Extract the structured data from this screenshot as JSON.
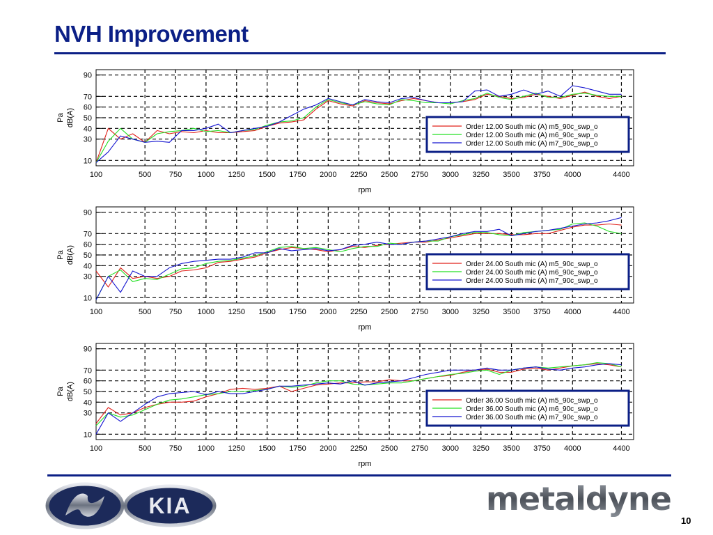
{
  "page": {
    "title": "NVH Improvement",
    "page_number": "10",
    "logos": {
      "left": "KIA",
      "right": "metaldyne"
    }
  },
  "colors": {
    "red": "#e0201a",
    "green": "#25e025",
    "blue": "#1414d0",
    "accent": "#0b1f86"
  },
  "chart_data": [
    {
      "type": "line",
      "xlabel": "rpm",
      "ylabel": [
        "Pa",
        "dB(A)"
      ],
      "xlim": [
        100,
        4500
      ],
      "ylim": [
        5,
        95
      ],
      "x_ticks": [
        100,
        500,
        750,
        1000,
        1250,
        1500,
        1750,
        2000,
        2250,
        2500,
        2750,
        3000,
        3250,
        3500,
        3750,
        4000,
        4400
      ],
      "y_ticks": [
        10,
        30,
        40,
        50,
        60,
        70,
        90
      ],
      "grid": true,
      "legend_position": "right",
      "x": [
        100,
        200,
        300,
        400,
        500,
        600,
        700,
        800,
        900,
        1000,
        1100,
        1200,
        1300,
        1400,
        1500,
        1600,
        1700,
        1800,
        1900,
        2000,
        2100,
        2200,
        2300,
        2400,
        2500,
        2600,
        2700,
        2800,
        2900,
        3000,
        3100,
        3200,
        3300,
        3400,
        3500,
        3600,
        3700,
        3800,
        3900,
        4000,
        4100,
        4200,
        4300,
        4400
      ],
      "series": [
        {
          "name": "Order 12.00 South mic (A)   m5_90c_swp_o",
          "color": "red",
          "values": [
            8,
            40,
            30,
            35,
            27,
            38,
            35,
            37,
            36,
            38,
            36,
            36,
            37,
            38,
            42,
            45,
            46,
            48,
            58,
            66,
            63,
            61,
            66,
            64,
            63,
            66,
            68,
            66,
            64,
            64,
            65,
            67,
            72,
            70,
            68,
            69,
            72,
            70,
            68,
            71,
            74,
            70,
            68,
            70
          ]
        },
        {
          "name": "Order 12.00 South mic (A)   m6_90c_swp_o",
          "color": "green",
          "values": [
            8,
            28,
            40,
            30,
            27,
            35,
            37,
            38,
            40,
            37,
            38,
            36,
            38,
            39,
            43,
            46,
            47,
            50,
            60,
            67,
            64,
            62,
            65,
            63,
            62,
            67,
            66,
            64,
            64,
            63,
            66,
            68,
            73,
            69,
            67,
            70,
            73,
            69,
            69,
            72,
            73,
            71,
            70,
            70
          ]
        },
        {
          "name": "Order 12.00 South mic (A)   m7_90c_swp_o",
          "color": "blue",
          "values": [
            8,
            18,
            33,
            30,
            27,
            28,
            27,
            38,
            38,
            40,
            44,
            36,
            38,
            40,
            42,
            46,
            52,
            58,
            62,
            68,
            65,
            62,
            67,
            65,
            64,
            68,
            69,
            66,
            64,
            64,
            65,
            75,
            76,
            70,
            72,
            76,
            72,
            75,
            70,
            80,
            78,
            75,
            72,
            72
          ]
        }
      ]
    },
    {
      "type": "line",
      "xlabel": "rpm",
      "ylabel": [
        "Pa",
        "dB(A)"
      ],
      "xlim": [
        100,
        4500
      ],
      "ylim": [
        5,
        95
      ],
      "x_ticks": [
        100,
        500,
        750,
        1000,
        1250,
        1500,
        1750,
        2000,
        2250,
        2500,
        2750,
        3000,
        3250,
        3500,
        3750,
        4000,
        4400
      ],
      "y_ticks": [
        10,
        30,
        40,
        50,
        60,
        70,
        90
      ],
      "grid": true,
      "legend_position": "right",
      "x": [
        100,
        200,
        300,
        400,
        500,
        600,
        700,
        800,
        900,
        1000,
        1100,
        1200,
        1300,
        1400,
        1500,
        1600,
        1700,
        1800,
        1900,
        2000,
        2100,
        2200,
        2300,
        2400,
        2500,
        2600,
        2700,
        2800,
        2900,
        3000,
        3100,
        3200,
        3300,
        3400,
        3500,
        3600,
        3700,
        3800,
        3900,
        4000,
        4100,
        4200,
        4300,
        4400
      ],
      "series": [
        {
          "name": "Order 24.00 South mic (A)   m5_90c_swp_o",
          "color": "red",
          "values": [
            35,
            20,
            38,
            28,
            30,
            28,
            30,
            35,
            36,
            38,
            43,
            44,
            46,
            48,
            52,
            55,
            57,
            56,
            55,
            53,
            55,
            58,
            57,
            59,
            60,
            61,
            62,
            62,
            64,
            66,
            68,
            70,
            70,
            70,
            69,
            69,
            70,
            70,
            73,
            76,
            78,
            78,
            79,
            78
          ]
        },
        {
          "name": "Order 24.00 South mic (A)   m6_90c_swp_o",
          "color": "green",
          "values": [
            8,
            30,
            36,
            25,
            28,
            27,
            32,
            37,
            38,
            42,
            44,
            45,
            47,
            49,
            53,
            57,
            58,
            56,
            57,
            55,
            53,
            56,
            58,
            58,
            61,
            60,
            62,
            63,
            63,
            67,
            69,
            71,
            71,
            69,
            68,
            71,
            72,
            73,
            74,
            79,
            80,
            77,
            72,
            70
          ]
        },
        {
          "name": "Order 24.00 South mic (A)   m7_90c_swp_o",
          "color": "blue",
          "values": [
            8,
            30,
            15,
            35,
            30,
            30,
            38,
            42,
            44,
            45,
            46,
            46,
            48,
            52,
            52,
            56,
            54,
            55,
            56,
            54,
            55,
            59,
            60,
            62,
            60,
            60,
            62,
            63,
            65,
            67,
            70,
            72,
            72,
            74,
            68,
            70,
            72,
            73,
            75,
            77,
            79,
            80,
            82,
            85
          ]
        }
      ]
    },
    {
      "type": "line",
      "xlabel": "rpm",
      "ylabel": [
        "Pa",
        "dB(A)"
      ],
      "xlim": [
        100,
        4500
      ],
      "ylim": [
        5,
        95
      ],
      "x_ticks": [
        100,
        500,
        750,
        1000,
        1250,
        1500,
        1750,
        2000,
        2250,
        2500,
        2750,
        3000,
        3250,
        3500,
        3750,
        4000,
        4400
      ],
      "y_ticks": [
        10,
        30,
        40,
        50,
        60,
        70,
        90
      ],
      "grid": true,
      "legend_position": "right",
      "x": [
        100,
        200,
        300,
        400,
        500,
        600,
        700,
        800,
        900,
        1000,
        1100,
        1200,
        1300,
        1400,
        1500,
        1600,
        1700,
        1800,
        1900,
        2000,
        2100,
        2200,
        2300,
        2400,
        2500,
        2600,
        2700,
        2800,
        2900,
        3000,
        3100,
        3200,
        3300,
        3400,
        3500,
        3600,
        3700,
        3800,
        3900,
        4000,
        4100,
        4200,
        4300,
        4400
      ],
      "series": [
        {
          "name": "Order 36.00 South mic (A)   m5_90c_swp_o",
          "color": "red",
          "values": [
            20,
            35,
            28,
            30,
            35,
            38,
            40,
            40,
            41,
            45,
            48,
            52,
            53,
            52,
            53,
            55,
            50,
            53,
            56,
            57,
            58,
            58,
            59,
            59,
            61,
            60,
            60,
            62,
            64,
            65,
            68,
            70,
            71,
            68,
            68,
            71,
            72,
            70,
            72,
            74,
            75,
            76,
            75,
            73
          ]
        },
        {
          "name": "Order 36.00 South mic (A)   m6_90c_swp_o",
          "color": "green",
          "values": [
            18,
            30,
            26,
            28,
            33,
            38,
            42,
            43,
            45,
            47,
            48,
            50,
            50,
            51,
            52,
            55,
            54,
            55,
            58,
            60,
            60,
            57,
            56,
            57,
            58,
            58,
            60,
            62,
            64,
            66,
            67,
            69,
            70,
            66,
            70,
            72,
            73,
            72,
            73,
            74,
            75,
            77,
            76,
            73
          ]
        },
        {
          "name": "Order 36.00 South mic (A)   m7_90c_swp_o",
          "color": "blue",
          "values": [
            10,
            30,
            22,
            30,
            38,
            45,
            48,
            49,
            50,
            47,
            50,
            48,
            48,
            50,
            52,
            55,
            55,
            56,
            57,
            58,
            57,
            60,
            56,
            58,
            59,
            60,
            63,
            66,
            68,
            70,
            70,
            70,
            72,
            70,
            70,
            72,
            73,
            71,
            70,
            72,
            73,
            75,
            76,
            75
          ]
        }
      ]
    }
  ]
}
